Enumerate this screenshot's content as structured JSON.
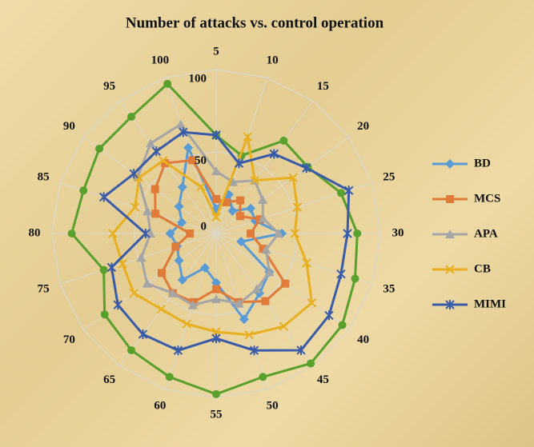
{
  "chart_data": {
    "type": "radar",
    "title": "Number of attacks vs. control operation",
    "categories": [
      "5",
      "10",
      "15",
      "20",
      "25",
      "30",
      "35",
      "40",
      "45",
      "50",
      "55",
      "60",
      "65",
      "70",
      "75",
      "80",
      "85",
      "90",
      "95",
      "100"
    ],
    "rlim": [
      0,
      100
    ],
    "rticks": [
      0,
      50,
      100
    ],
    "grid": true,
    "legend": "right",
    "series": [
      {
        "color": "#5aa02c",
        "marker": "circle",
        "values": [
          60,
          50,
          70,
          69,
          80,
          86,
          89,
          95,
          98,
          92,
          98,
          92,
          88,
          84,
          72,
          88,
          85,
          88,
          88,
          96
        ]
      },
      {
        "name": "BD",
        "color": "#5b9bd5",
        "marker": "diamond",
        "values": [
          15,
          25,
          17,
          26,
          25,
          40,
          16,
          40,
          45,
          55,
          30,
          22,
          35,
          28,
          25,
          28,
          22,
          28,
          35,
          55
        ]
      },
      {
        "name": "MCS",
        "color": "#e07b39",
        "marker": "square",
        "values": [
          21,
          20,
          25,
          18,
          28,
          21,
          30,
          52,
          51,
          44,
          34,
          44,
          45,
          41,
          26,
          16,
          39,
          46,
          53,
          47
        ]
      },
      {
        "name": "APA",
        "color": "#a5a5a5",
        "marker": "triangle",
        "values": [
          38,
          33,
          40,
          35,
          30,
          38,
          32,
          40,
          42,
          45,
          40,
          46,
          45,
          52,
          48,
          40,
          44,
          59,
          68,
          70
        ]
      },
      {
        "name": "CB",
        "color": "#e8b020",
        "marker": "x",
        "values": [
          10,
          62,
          40,
          58,
          52,
          48,
          58,
          72,
          70,
          65,
          60,
          58,
          57,
          62,
          60,
          63,
          52,
          58,
          55,
          30
        ]
      },
      {
        "name": "MIMI",
        "color": "#3a5ba8",
        "marker": "star",
        "values": [
          60,
          45,
          60,
          68,
          85,
          80,
          80,
          85,
          88,
          75,
          64,
          75,
          76,
          74,
          67,
          43,
          72,
          62,
          62,
          65
        ]
      }
    ]
  }
}
